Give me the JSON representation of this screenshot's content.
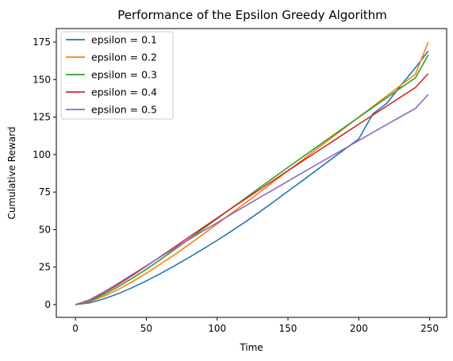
{
  "chart_data": {
    "type": "line",
    "title": "Performance of the Epsilon Greedy Algorithm",
    "xlabel": "Time",
    "ylabel": "Cumulative Reward",
    "xlim": [
      -13.5,
      262
    ],
    "ylim": [
      -8.5,
      184
    ],
    "xticks": [
      0,
      50,
      100,
      150,
      200,
      250
    ],
    "yticks": [
      0,
      25,
      50,
      75,
      100,
      125,
      150,
      175
    ],
    "grid": false,
    "legend_position": "top-left",
    "series": [
      {
        "name": "epsilon = 0.1",
        "color": "#1f77b4",
        "x": [
          0,
          10,
          20,
          30,
          40,
          50,
          60,
          70,
          80,
          90,
          100,
          110,
          120,
          130,
          140,
          150,
          160,
          170,
          180,
          190,
          200,
          210,
          220,
          230,
          240,
          249
        ],
        "y": [
          0,
          1.2,
          3.8,
          7.2,
          11.3,
          15.8,
          20.7,
          25.9,
          31.3,
          37.0,
          42.8,
          48.9,
          55.2,
          61.8,
          68.6,
          75.6,
          82.5,
          89.5,
          96.5,
          103.5,
          110.5,
          127.2,
          134.4,
          146.5,
          158.0,
          169.0
        ]
      },
      {
        "name": "epsilon = 0.2",
        "color": "#ff7f0e",
        "x": [
          0,
          10,
          20,
          30,
          40,
          50,
          60,
          70,
          80,
          90,
          100,
          110,
          120,
          130,
          140,
          150,
          160,
          170,
          180,
          190,
          200,
          210,
          220,
          230,
          240,
          249
        ],
        "y": [
          0,
          2.0,
          5.5,
          10.0,
          15.2,
          20.9,
          27.0,
          33.3,
          40.0,
          46.8,
          53.8,
          60.8,
          67.8,
          74.9,
          82.0,
          89.2,
          96.3,
          103.5,
          110.6,
          117.8,
          125.0,
          132.1,
          139.3,
          146.5,
          153.6,
          175.0
        ]
      },
      {
        "name": "epsilon = 0.3",
        "color": "#2ca02c",
        "x": [
          0,
          10,
          20,
          30,
          40,
          50,
          60,
          70,
          80,
          90,
          100,
          110,
          120,
          130,
          140,
          150,
          160,
          170,
          180,
          190,
          200,
          210,
          220,
          230,
          240,
          249
        ],
        "y": [
          0,
          2.5,
          6.7,
          11.8,
          17.5,
          23.6,
          30.0,
          36.7,
          43.5,
          50.4,
          57.3,
          64.2,
          71.0,
          77.9,
          84.7,
          91.5,
          98.2,
          104.9,
          111.6,
          118.3,
          124.9,
          131.5,
          138.1,
          144.7,
          151.2,
          166.5
        ]
      },
      {
        "name": "epsilon = 0.4",
        "color": "#d62728",
        "x": [
          0,
          10,
          20,
          30,
          40,
          50,
          60,
          70,
          80,
          90,
          100,
          110,
          120,
          130,
          140,
          150,
          160,
          170,
          180,
          190,
          200,
          210,
          220,
          230,
          240,
          249
        ],
        "y": [
          0,
          3.0,
          7.8,
          13.3,
          19.3,
          25.6,
          32.0,
          38.4,
          44.9,
          51.3,
          57.7,
          64.1,
          70.4,
          76.7,
          83.0,
          89.3,
          95.5,
          101.7,
          107.9,
          114.1,
          120.3,
          126.4,
          132.5,
          138.6,
          144.7,
          154.0
        ]
      },
      {
        "name": "epsilon = 0.5",
        "color": "#9467bd",
        "x": [
          0,
          10,
          20,
          30,
          40,
          50,
          60,
          70,
          80,
          90,
          100,
          110,
          120,
          130,
          140,
          150,
          160,
          170,
          180,
          190,
          200,
          210,
          220,
          230,
          240,
          249
        ],
        "y": [
          0,
          3.2,
          8.4,
          14.1,
          20.0,
          25.9,
          31.8,
          37.6,
          43.3,
          49.0,
          54.6,
          60.2,
          65.8,
          71.3,
          76.8,
          82.3,
          87.8,
          93.2,
          98.6,
          104.0,
          109.4,
          114.8,
          120.2,
          125.5,
          130.8,
          140.0
        ]
      }
    ]
  }
}
